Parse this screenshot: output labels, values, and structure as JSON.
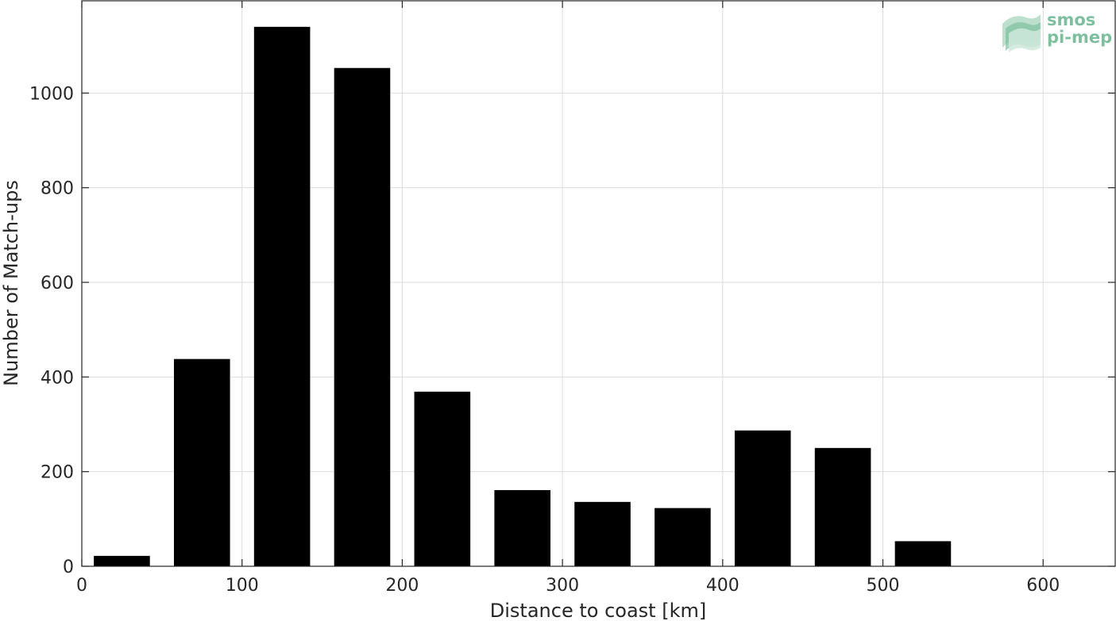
{
  "chart_data": {
    "type": "bar",
    "xlabel": "Distance to coast [km]",
    "ylabel": "Number of Match-ups",
    "xlim": [
      0,
      645
    ],
    "ylim": [
      0,
      1195
    ],
    "xticks": [
      0,
      100,
      200,
      300,
      400,
      500,
      600
    ],
    "yticks": [
      0,
      200,
      400,
      600,
      800,
      1000
    ],
    "grid": true,
    "bar_width": 35,
    "bars": [
      {
        "x": 25,
        "value": 22
      },
      {
        "x": 75,
        "value": 438
      },
      {
        "x": 125,
        "value": 1140
      },
      {
        "x": 175,
        "value": 1053
      },
      {
        "x": 225,
        "value": 369
      },
      {
        "x": 275,
        "value": 161
      },
      {
        "x": 325,
        "value": 136
      },
      {
        "x": 375,
        "value": 123
      },
      {
        "x": 425,
        "value": 287
      },
      {
        "x": 475,
        "value": 250
      },
      {
        "x": 525,
        "value": 53
      }
    ],
    "bar_color": "#000000"
  },
  "logo": {
    "line1": "smos",
    "line2": "pi-mep",
    "color": "#7fbf9f"
  }
}
